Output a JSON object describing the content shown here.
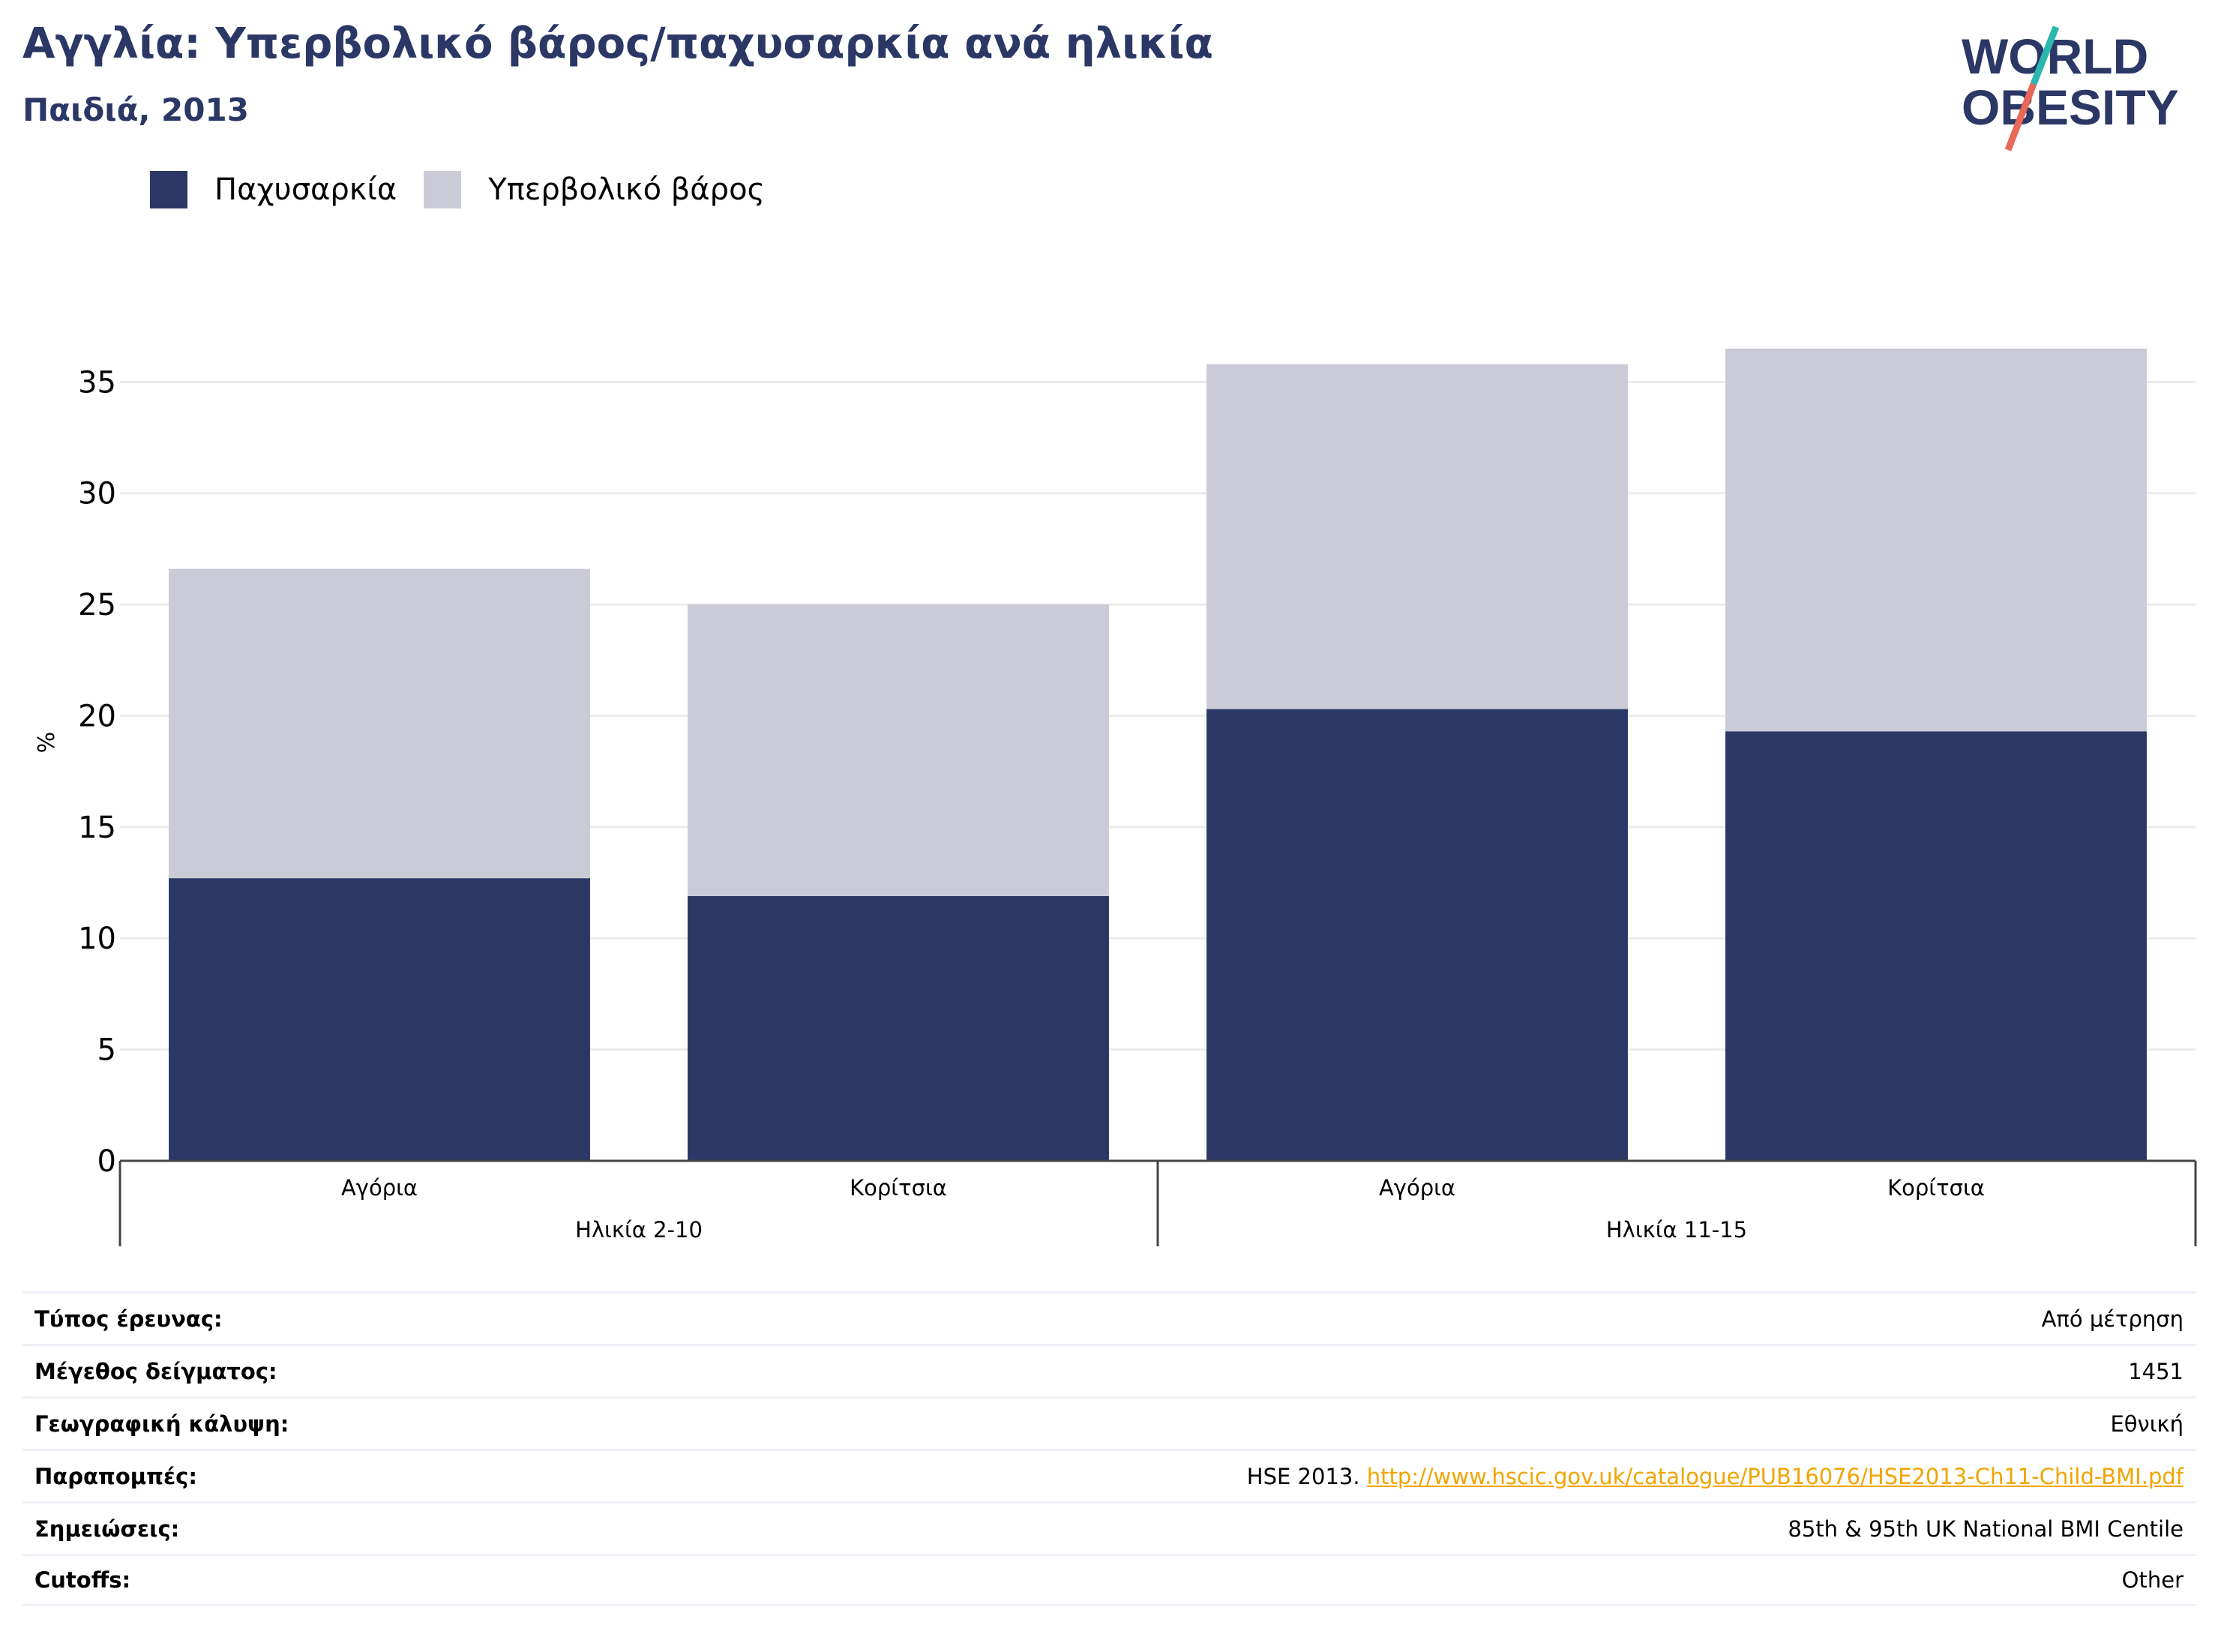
{
  "header": {
    "title": "Αγγλία: Υπερβολικό βάρος/παχυσαρκία ανά ηλικία",
    "subtitle": "Παιδιά, 2013",
    "logo_line1": "WORLD",
    "logo_line2": "OBESITY"
  },
  "colors": {
    "obesity": "#2b3764",
    "overweight": "#cacbd6",
    "accent_teal": "#2bb6ae",
    "accent_coral": "#e8685a",
    "link": "#f0a500"
  },
  "chart_data": {
    "type": "bar",
    "stacked": true,
    "categories": [
      "Αγόρια",
      "Κορίτσια",
      "Αγόρια",
      "Κορίτσια"
    ],
    "groups": [
      {
        "label": "Ηλικία 2-10",
        "categories": [
          0,
          1
        ]
      },
      {
        "label": "Ηλικία 11-15",
        "categories": [
          2,
          3
        ]
      }
    ],
    "series": [
      {
        "name": "Παχυσαρκία",
        "values": [
          12.7,
          11.9,
          20.3,
          19.3
        ]
      },
      {
        "name": "Υπερβολικό βάρος",
        "values": [
          13.9,
          13.1,
          15.5,
          17.2
        ]
      }
    ],
    "ylabel": "%",
    "ylim": [
      0,
      37
    ],
    "yticks": [
      0,
      5,
      10,
      15,
      20,
      25,
      30,
      35
    ],
    "grid": true,
    "legend": "top-left"
  },
  "meta": [
    {
      "key": "Τύπος έρευνας:",
      "value": "Από μέτρηση"
    },
    {
      "key": "Μέγεθος δείγματος:",
      "value": "1451"
    },
    {
      "key": "Γεωγραφική κάλυψη:",
      "value": "Εθνική"
    },
    {
      "key": "Παραπομπές:",
      "value": "HSE 2013.",
      "link": "http://www.hscic.gov.uk/catalogue/PUB16076/HSE2013-Ch11-Child-BMI.pdf"
    },
    {
      "key": "Σημειώσεις:",
      "value": "85th & 95th UK National BMI Centile"
    },
    {
      "key": "Cutoffs:",
      "value": "Other"
    }
  ]
}
